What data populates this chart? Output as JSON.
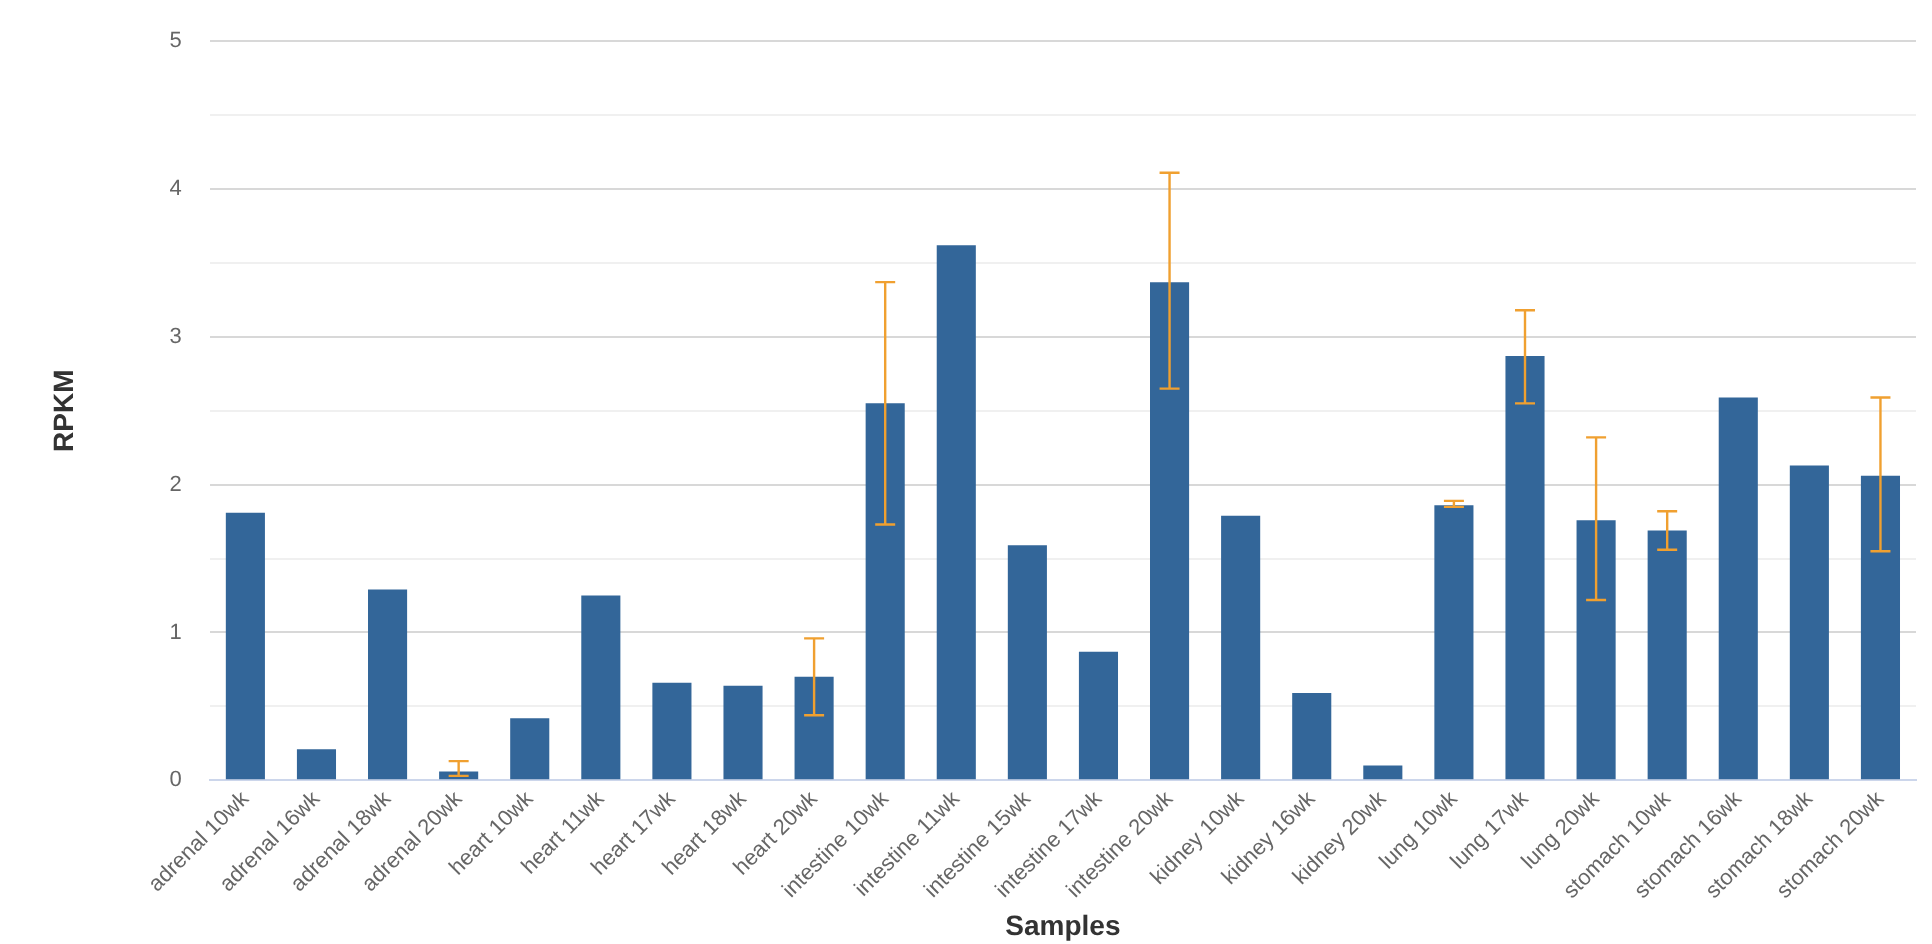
{
  "chart_data": {
    "type": "bar",
    "xlabel": "Samples",
    "ylabel": "RPKM",
    "categories": [
      "adrenal 10wk",
      "adrenal 16wk",
      "adrenal 18wk",
      "adrenal 20wk",
      "heart 10wk",
      "heart 11wk",
      "heart 17wk",
      "heart 18wk",
      "heart 20wk",
      "intestine 10wk",
      "intestine 11wk",
      "intestine 15wk",
      "intestine 17wk",
      "intestine 20wk",
      "kidney 10wk",
      "kidney 16wk",
      "kidney 20wk",
      "lung 10wk",
      "lung 17wk",
      "lung 20wk",
      "stomach 10wk",
      "stomach 16wk",
      "stomach 18wk",
      "stomach 20wk"
    ],
    "values": [
      1.81,
      0.21,
      1.29,
      0.06,
      0.42,
      1.25,
      0.66,
      0.64,
      0.7,
      2.55,
      3.62,
      1.59,
      0.87,
      3.37,
      1.79,
      0.59,
      0.1,
      1.86,
      2.87,
      1.76,
      1.69,
      2.59,
      2.13,
      2.06
    ],
    "errors": [
      null,
      null,
      null,
      [
        0.03,
        0.13
      ],
      null,
      null,
      null,
      null,
      [
        0.44,
        0.96
      ],
      [
        1.73,
        3.37
      ],
      null,
      null,
      null,
      [
        2.65,
        4.11
      ],
      null,
      null,
      null,
      [
        1.85,
        1.89
      ],
      [
        2.55,
        3.18
      ],
      [
        1.22,
        2.32
      ],
      [
        1.56,
        1.82
      ],
      null,
      null,
      [
        1.55,
        2.59
      ]
    ],
    "color": "#336699",
    "ylim": [
      0,
      5
    ],
    "yticks": [
      0,
      {
        "value": 0.5,
        "label": null
      },
      1,
      {
        "value": 1.5,
        "label": null
      },
      2,
      {
        "value": 2.5,
        "label": null
      },
      3,
      {
        "value": 3.5,
        "label": null
      },
      4,
      {
        "value": 4.5,
        "label": null
      },
      5
    ],
    "grid": "y",
    "legend": false
  }
}
